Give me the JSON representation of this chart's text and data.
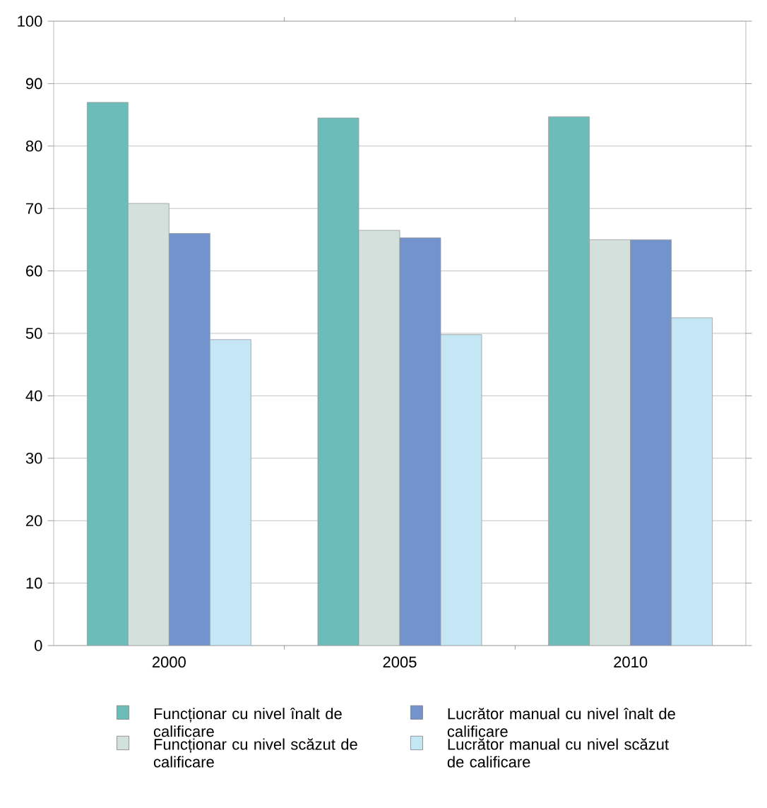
{
  "chart_data": {
    "type": "bar",
    "categories": [
      "2000",
      "2005",
      "2010"
    ],
    "series": [
      {
        "name": "Funcționar cu nivel înalt de calificare",
        "color": "#6cbdb9",
        "values": [
          87,
          84.5,
          84.7
        ]
      },
      {
        "name": "Funcționar cu nivel scăzut de calificare",
        "color": "#d3e0dc",
        "values": [
          70.8,
          66.5,
          65
        ]
      },
      {
        "name": "Lucrător manual cu nivel înalt de calificare",
        "color": "#7393cc",
        "values": [
          66,
          65.3,
          65
        ]
      },
      {
        "name": "Lucrător manual cu nivel scăzut de calificare",
        "color": "#c4e6f5",
        "values": [
          49,
          49.8,
          52.5
        ]
      }
    ],
    "ylim": [
      0,
      100
    ],
    "yticks": [
      0,
      10,
      20,
      30,
      40,
      50,
      60,
      70,
      80,
      90,
      100
    ],
    "grid": "y",
    "legend": "bottom"
  }
}
